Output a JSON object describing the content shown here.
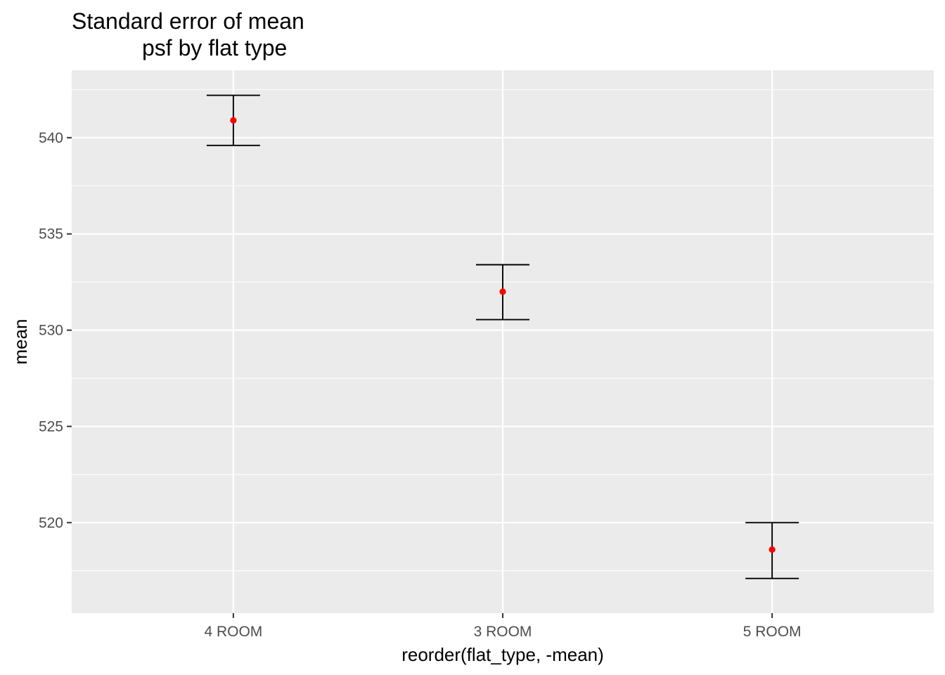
{
  "chart_data": {
    "type": "errorbar",
    "title_lines": [
      "Standard error of mean",
      "psf by flat type"
    ],
    "xlabel": "reorder(flat_type, -mean)",
    "ylabel": "mean",
    "categories": [
      "4 ROOM",
      "3 ROOM",
      "5 ROOM"
    ],
    "mean": [
      540.9,
      532.0,
      518.6
    ],
    "lower": [
      539.6,
      530.55,
      517.1
    ],
    "upper": [
      542.2,
      533.4,
      520.0
    ],
    "ylim": [
      515.3,
      543.5
    ],
    "yticks": [
      520,
      525,
      530,
      535,
      540
    ],
    "ytick_labels": [
      "520",
      "525",
      "530",
      "535",
      "540"
    ],
    "grid": true,
    "point_color": "#ff0000",
    "errorbar_color": "#000000",
    "panel_color": "#ebebeb",
    "grid_color": "#ffffff"
  }
}
